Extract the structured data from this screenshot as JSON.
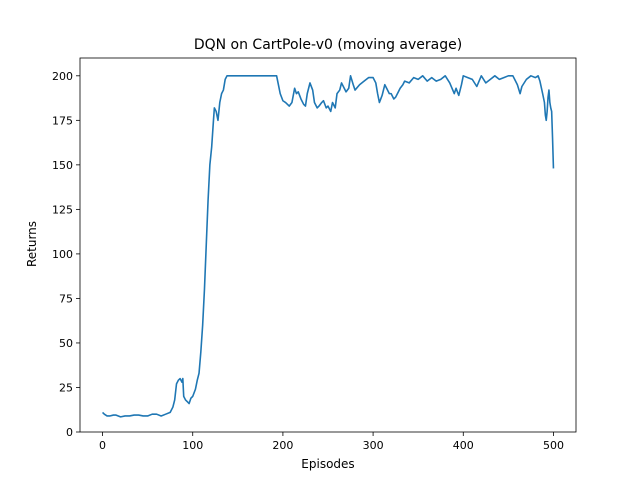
{
  "chart_data": {
    "type": "line",
    "title": "DQN on CartPole-v0 (moving average)",
    "xlabel": "Episodes",
    "ylabel": "Returns",
    "xlim": [
      -25,
      525
    ],
    "ylim": [
      0,
      210
    ],
    "x_ticks": [
      0,
      100,
      200,
      300,
      400,
      500
    ],
    "y_ticks": [
      0,
      25,
      50,
      75,
      100,
      125,
      150,
      175,
      200
    ],
    "grid": false,
    "line_color": "#1f77b4",
    "series": [
      {
        "x": [
          0,
          2,
          5,
          8,
          12,
          15,
          20,
          25,
          30,
          35,
          40,
          45,
          50,
          55,
          60,
          65,
          70,
          75,
          78,
          80,
          82,
          84,
          86,
          88,
          89,
          90,
          92,
          94,
          96,
          98,
          100,
          103,
          105,
          107,
          109,
          111,
          113,
          115,
          117,
          119,
          121,
          123,
          124,
          126,
          128,
          130,
          132,
          134,
          136,
          138,
          140,
          150,
          160,
          170,
          180,
          190,
          193,
          195,
          197,
          200,
          203,
          205,
          207,
          210,
          213,
          215,
          217,
          220,
          223,
          225,
          227,
          230,
          233,
          235,
          238,
          240,
          243,
          245,
          248,
          250,
          253,
          255,
          258,
          260,
          263,
          265,
          268,
          270,
          273,
          275,
          278,
          280,
          285,
          290,
          295,
          300,
          303,
          305,
          307,
          310,
          313,
          315,
          318,
          320,
          323,
          325,
          328,
          330,
          333,
          335,
          340,
          345,
          350,
          355,
          360,
          365,
          370,
          375,
          380,
          385,
          390,
          392,
          395,
          398,
          400,
          405,
          410,
          415,
          420,
          425,
          430,
          435,
          440,
          445,
          450,
          455,
          457,
          460,
          463,
          465,
          470,
          475,
          480,
          483,
          485,
          488,
          490,
          491,
          492,
          493,
          494,
          495,
          496,
          497,
          498,
          499,
          500
        ],
        "y": [
          11,
          10,
          9,
          9,
          9.5,
          9.5,
          8.5,
          9,
          9,
          9.5,
          9.5,
          9,
          9,
          10,
          10,
          9,
          10,
          11,
          14,
          18,
          27,
          29,
          30,
          28,
          30,
          20,
          18,
          17,
          16,
          19,
          20,
          24,
          29,
          33,
          45,
          60,
          80,
          105,
          130,
          150,
          160,
          175,
          182,
          180,
          175,
          185,
          190,
          192,
          198,
          200,
          200,
          200,
          200,
          200,
          200,
          200,
          200,
          195,
          190,
          186,
          185,
          184,
          183,
          185,
          193,
          190,
          191,
          187,
          184,
          183,
          190,
          196,
          192,
          185,
          182,
          183,
          185,
          186,
          182,
          183,
          180,
          185,
          182,
          190,
          192,
          196,
          193,
          191,
          193,
          200,
          195,
          192,
          195,
          197,
          199,
          199,
          196,
          190,
          185,
          189,
          195,
          193,
          190,
          190,
          187,
          188,
          191,
          193,
          195,
          197,
          196,
          199,
          198,
          200,
          197,
          199,
          197,
          198,
          200,
          196,
          190,
          193,
          189,
          195,
          200,
          199,
          198,
          194,
          200,
          196,
          198,
          200,
          198,
          199,
          200,
          200,
          198,
          195,
          190,
          194,
          198,
          200,
          199,
          200,
          197,
          190,
          185,
          178,
          175,
          180,
          188,
          192,
          185,
          182,
          180,
          165,
          148
        ]
      }
    ]
  }
}
